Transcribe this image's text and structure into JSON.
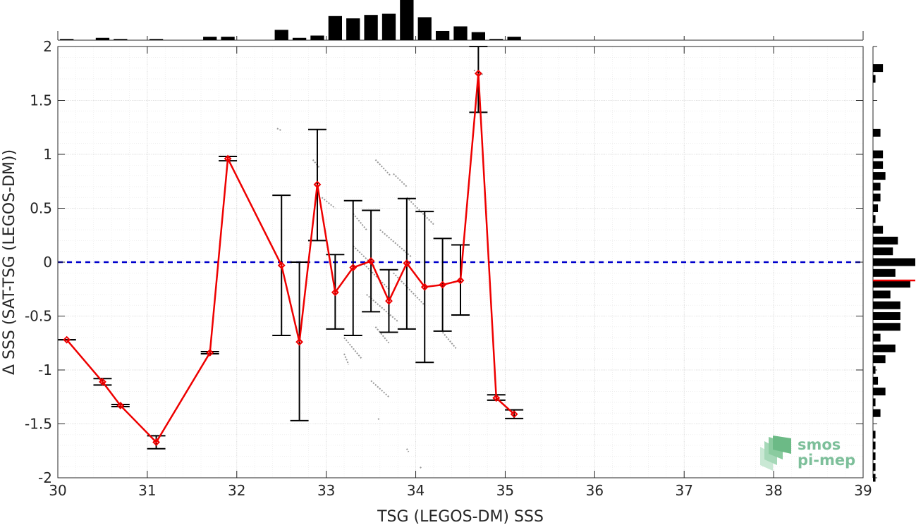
{
  "chart_data": {
    "type": "scatter",
    "xlabel": "TSG (LEGOS-DM) SSS",
    "ylabel": "Δ SSS (SAT-TSG (LEGOS-DM))",
    "xlim": [
      30,
      39
    ],
    "ylim": [
      -2,
      2
    ],
    "xticks": [
      "30",
      "31",
      "32",
      "33",
      "34",
      "35",
      "36",
      "37",
      "38",
      "39"
    ],
    "yticks": [
      "-2",
      "-1.5",
      "-1",
      "-0.5",
      "0",
      "0.5",
      "1",
      "1.5",
      "2"
    ],
    "grid": true,
    "zero_line": {
      "y": 0,
      "style": "dashed",
      "color": "#0000cc"
    },
    "colors": {
      "mean_line": "#ee0000",
      "error_bars": "#000000",
      "scatter": "#999999",
      "histograms": "#000000",
      "logo": "#7dbf9a"
    },
    "binned_mean": {
      "x": [
        30.1,
        30.5,
        30.7,
        31.1,
        31.7,
        31.9,
        32.5,
        32.7,
        32.9,
        33.1,
        33.3,
        33.5,
        33.7,
        33.9,
        34.1,
        34.3,
        34.5,
        34.7,
        34.9,
        35.1
      ],
      "y": [
        -0.72,
        -1.11,
        -1.33,
        -1.67,
        -0.84,
        0.96,
        -0.03,
        -0.74,
        0.72,
        -0.28,
        -0.05,
        0.01,
        -0.36,
        -0.01,
        -0.23,
        -0.21,
        -0.17,
        1.75,
        -1.26,
        -1.41
      ],
      "err_low": [
        -0.72,
        -1.14,
        -1.34,
        -1.73,
        -0.85,
        0.94,
        -0.68,
        -1.47,
        0.2,
        -0.62,
        -0.68,
        -0.46,
        -0.65,
        -0.62,
        -0.93,
        -0.64,
        -0.49,
        1.39,
        -1.28,
        -1.45
      ],
      "err_high": [
        -0.72,
        -1.08,
        -1.32,
        -1.61,
        -0.83,
        0.98,
        0.62,
        0.0,
        1.23,
        0.07,
        0.57,
        0.48,
        -0.07,
        0.59,
        0.47,
        0.22,
        0.16,
        2.0,
        -1.23,
        -1.37
      ]
    },
    "scatter_segments": [
      [
        32.45,
        1.24,
        32.5,
        1.22
      ],
      [
        32.85,
        0.95,
        32.92,
        0.88
      ],
      [
        32.95,
        0.6,
        33.1,
        0.5
      ],
      [
        33.55,
        0.95,
        33.72,
        0.8
      ],
      [
        33.75,
        0.82,
        33.9,
        0.7
      ],
      [
        33.3,
        0.15,
        33.55,
        -0.05
      ],
      [
        33.4,
        0.0,
        33.7,
        -0.25
      ],
      [
        33.6,
        0.3,
        33.95,
        0.05
      ],
      [
        33.75,
        -0.1,
        34.1,
        -0.4
      ],
      [
        33.45,
        -0.3,
        33.8,
        -0.55
      ],
      [
        33.9,
        0.6,
        34.2,
        0.35
      ],
      [
        33.55,
        -0.6,
        33.7,
        -0.75
      ],
      [
        33.2,
        -0.7,
        33.4,
        -0.9
      ],
      [
        33.2,
        -0.85,
        33.25,
        -0.95
      ],
      [
        33.5,
        -1.1,
        33.7,
        -1.25
      ],
      [
        34.3,
        -0.65,
        34.45,
        -0.8
      ],
      [
        33.3,
        0.45,
        33.45,
        0.3
      ],
      [
        34.65,
        1.78,
        34.75,
        1.74
      ],
      [
        33.9,
        -1.73,
        33.92,
        -1.76
      ],
      [
        34.05,
        -1.9,
        34.07,
        -1.92
      ],
      [
        33.58,
        -1.45,
        33.6,
        -1.47
      ]
    ],
    "histogram_top": {
      "bin_centers": [
        30.1,
        30.5,
        30.7,
        31.1,
        31.7,
        31.9,
        32.5,
        32.7,
        32.9,
        33.1,
        33.3,
        33.5,
        33.7,
        33.9,
        34.1,
        34.3,
        34.5,
        34.7,
        34.9,
        35.1
      ],
      "counts": [
        1,
        2,
        1,
        1,
        3,
        3,
        9,
        2,
        4,
        21,
        19,
        22,
        23,
        35,
        20,
        8,
        12,
        7,
        1,
        3
      ]
    },
    "histogram_right": {
      "bin_centers": [
        1.8,
        1.7,
        1.2,
        1.0,
        0.9,
        0.8,
        0.7,
        0.6,
        0.5,
        0.4,
        0.3,
        0.2,
        0.1,
        0.0,
        -0.1,
        -0.2,
        -0.3,
        -0.4,
        -0.5,
        -0.6,
        -0.7,
        -0.8,
        -0.9,
        -1.0,
        -1.1,
        -1.2,
        -1.3,
        -1.4,
        -1.6,
        -1.7,
        -1.8,
        -1.9,
        -2.0
      ],
      "counts": [
        4,
        1,
        3,
        4,
        4,
        5,
        3,
        3,
        2,
        1,
        4,
        10,
        8,
        17,
        9,
        15,
        7,
        11,
        11,
        11,
        3,
        9,
        5,
        1,
        2,
        5,
        1,
        3,
        1,
        1,
        1,
        1,
        1
      ]
    },
    "median_marker": -0.17,
    "logo": {
      "line1": "smos",
      "line2": "pi-mep"
    }
  }
}
